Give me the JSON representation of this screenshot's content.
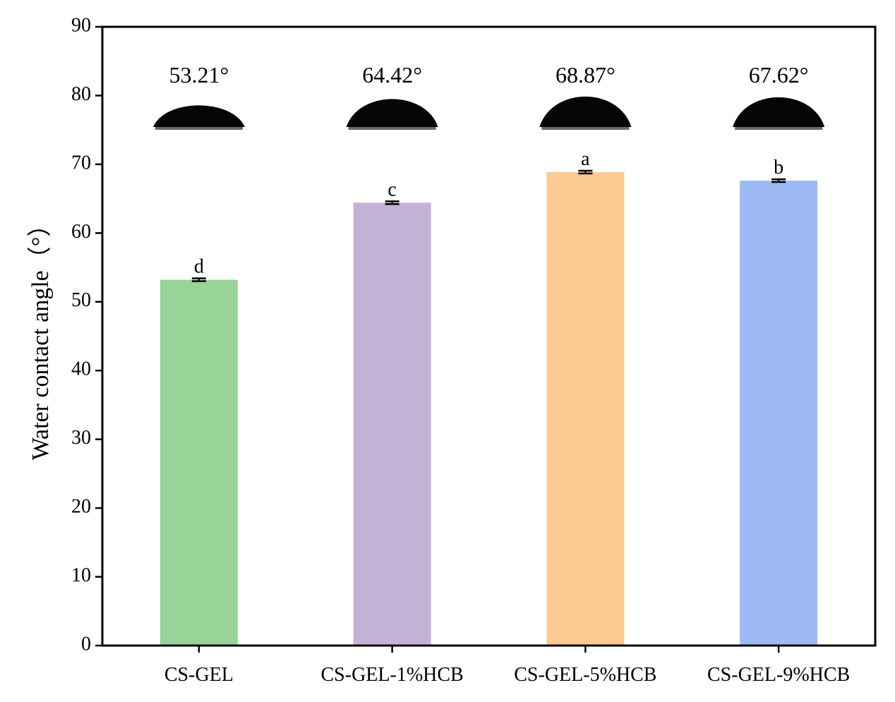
{
  "chart_data": {
    "type": "bar",
    "title": "",
    "xlabel": "",
    "ylabel": "Water contact angle（°）",
    "ylim": [
      0,
      90
    ],
    "yticks": [
      0,
      10,
      20,
      30,
      40,
      50,
      60,
      70,
      80,
      90
    ],
    "grid": false,
    "categories": [
      "CS-GEL",
      "CS-GEL-1%HCB",
      "CS-GEL-5%HCB",
      "CS-GEL-9%HCB"
    ],
    "values": [
      53.21,
      64.42,
      68.87,
      67.62
    ],
    "errors": [
      0.2,
      0.2,
      0.2,
      0.2
    ],
    "significance": [
      "d",
      "c",
      "a",
      "b"
    ],
    "angle_labels": [
      "53.21°",
      "64.42°",
      "68.87°",
      "67.62°"
    ],
    "colors": [
      "#98d498",
      "#c3b2d6",
      "#fcca92",
      "#9dbaf4"
    ]
  }
}
